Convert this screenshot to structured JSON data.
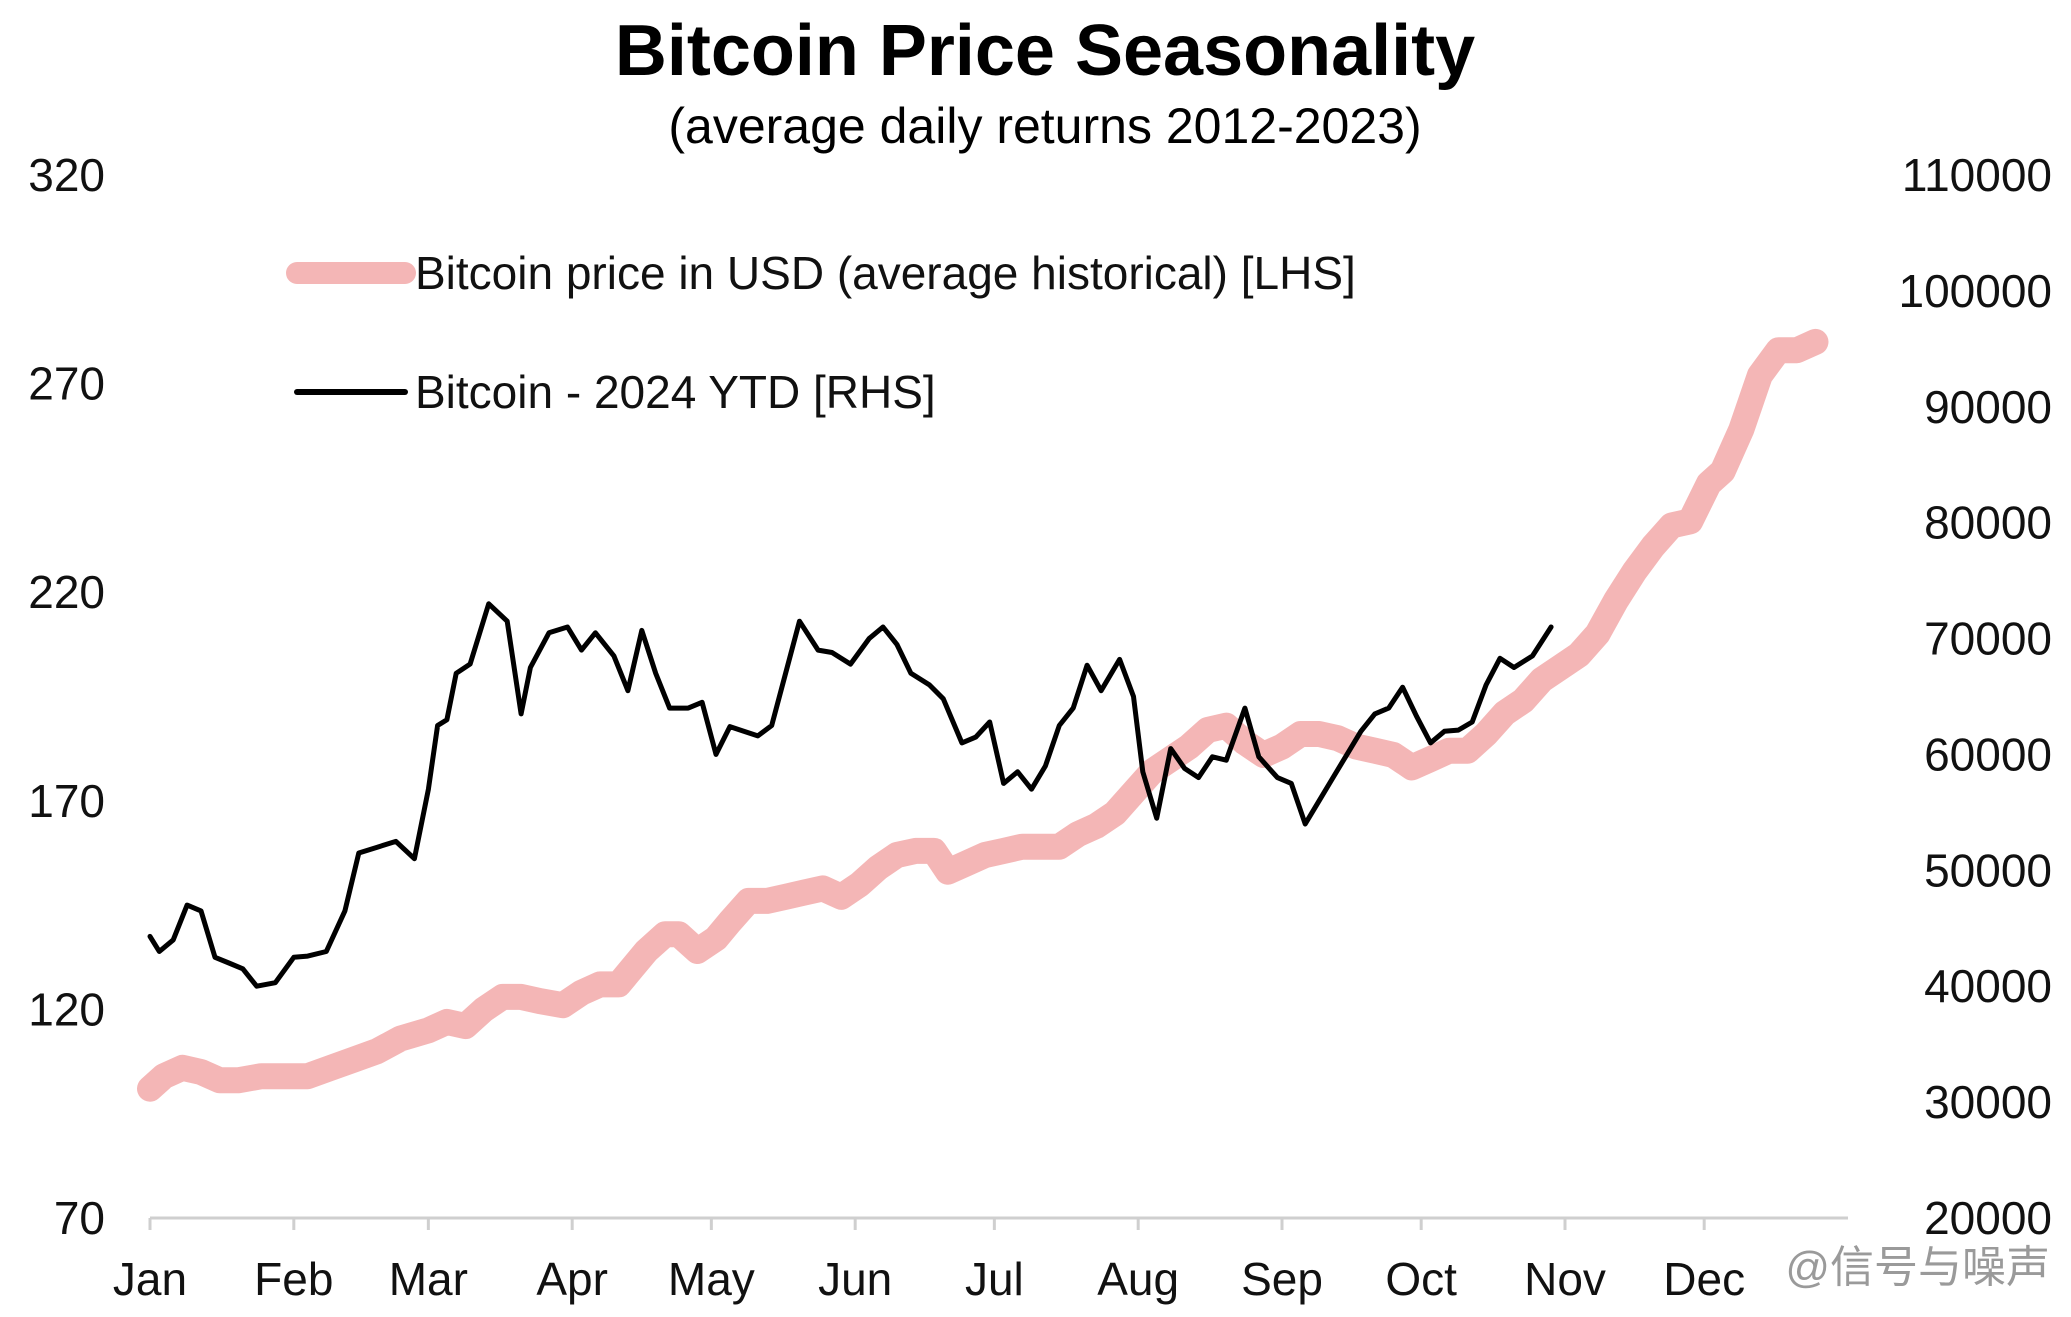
{
  "chart_data": {
    "type": "line",
    "title": "Bitcoin Price Seasonality",
    "subtitle": "(average daily returns 2012-2023)",
    "x_ticks": [
      "Jan",
      "Feb",
      "Mar",
      "Apr",
      "May",
      "Jun",
      "Jul",
      "Aug",
      "Sep",
      "Oct",
      "Nov",
      "Dec"
    ],
    "y_left": {
      "ticks": [
        70,
        120,
        170,
        220,
        270,
        320
      ],
      "range": [
        70,
        320
      ]
    },
    "y_right": {
      "ticks": [
        20000,
        30000,
        40000,
        50000,
        60000,
        70000,
        80000,
        90000,
        100000,
        110000
      ],
      "range": [
        20000,
        110000
      ]
    },
    "legend": {
      "placement": "top-left"
    },
    "series": [
      {
        "name": "Bitcoin price in USD (average historical) [LHS]",
        "axis": "left",
        "color": "#f4b6b6",
        "points": [
          [
            "Jan 1",
            101
          ],
          [
            "Jan 4",
            104
          ],
          [
            "Jan 8",
            106
          ],
          [
            "Jan 12",
            105
          ],
          [
            "Jan 16",
            103
          ],
          [
            "Jan 20",
            103
          ],
          [
            "Jan 25",
            104
          ],
          [
            "Jan 30",
            104
          ],
          [
            "Feb 4",
            104
          ],
          [
            "Feb 9",
            106
          ],
          [
            "Feb 14",
            108
          ],
          [
            "Feb 19",
            110
          ],
          [
            "Feb 24",
            113
          ],
          [
            "Mar 1",
            115
          ],
          [
            "Mar 5",
            117
          ],
          [
            "Mar 9",
            116
          ],
          [
            "Mar 13",
            120
          ],
          [
            "Mar 17",
            123
          ],
          [
            "Mar 21",
            123
          ],
          [
            "Mar 25",
            122
          ],
          [
            "Mar 30",
            121
          ],
          [
            "Apr 3",
            124
          ],
          [
            "Apr 7",
            126
          ],
          [
            "Apr 11",
            126
          ],
          [
            "Apr 14",
            130
          ],
          [
            "Apr 17",
            134
          ],
          [
            "Apr 21",
            138
          ],
          [
            "Apr 24",
            138
          ],
          [
            "Apr 28",
            134
          ],
          [
            "May 2",
            137
          ],
          [
            "May 5",
            141
          ],
          [
            "May 9",
            146
          ],
          [
            "May 13",
            146
          ],
          [
            "May 17",
            147
          ],
          [
            "May 21",
            148
          ],
          [
            "May 25",
            149
          ],
          [
            "May 29",
            147
          ],
          [
            "Jun 2",
            150
          ],
          [
            "Jun 6",
            154
          ],
          [
            "Jun 10",
            157
          ],
          [
            "Jun 14",
            158
          ],
          [
            "Jun 18",
            158
          ],
          [
            "Jun 21",
            153
          ],
          [
            "Jun 25",
            155
          ],
          [
            "Jun 29",
            157
          ],
          [
            "Jul 3",
            158
          ],
          [
            "Jul 7",
            159
          ],
          [
            "Jul 11",
            159
          ],
          [
            "Jul 15",
            159
          ],
          [
            "Jul 19",
            162
          ],
          [
            "Jul 23",
            164
          ],
          [
            "Jul 27",
            167
          ],
          [
            "Jul 31",
            172
          ],
          [
            "Aug 4",
            177
          ],
          [
            "Aug 8",
            180
          ],
          [
            "Aug 12",
            183
          ],
          [
            "Aug 16",
            187
          ],
          [
            "Aug 20",
            188
          ],
          [
            "Aug 24",
            184
          ],
          [
            "Aug 28",
            181
          ],
          [
            "Sep 1",
            183
          ],
          [
            "Sep 5",
            186
          ],
          [
            "Sep 9",
            186
          ],
          [
            "Sep 13",
            185
          ],
          [
            "Sep 17",
            183
          ],
          [
            "Sep 21",
            182
          ],
          [
            "Sep 25",
            181
          ],
          [
            "Sep 29",
            178
          ],
          [
            "Oct 3",
            180
          ],
          [
            "Oct 7",
            182
          ],
          [
            "Oct 11",
            182
          ],
          [
            "Oct 15",
            186
          ],
          [
            "Oct 19",
            191
          ],
          [
            "Oct 23",
            194
          ],
          [
            "Oct 27",
            199
          ],
          [
            "Oct 31",
            202
          ],
          [
            "Nov 4",
            205
          ],
          [
            "Nov 8",
            210
          ],
          [
            "Nov 12",
            218
          ],
          [
            "Nov 16",
            225
          ],
          [
            "Nov 20",
            231
          ],
          [
            "Nov 24",
            236
          ],
          [
            "Nov 28",
            237
          ],
          [
            "Dec 2",
            246
          ],
          [
            "Dec 5",
            249
          ],
          [
            "Dec 9",
            259
          ],
          [
            "Dec 13",
            272
          ],
          [
            "Dec 17",
            278
          ],
          [
            "Dec 21",
            278
          ],
          [
            "Dec 25",
            280
          ]
        ]
      },
      {
        "name": "Bitcoin - 2024 YTD [RHS]",
        "axis": "right",
        "color": "#000000",
        "points": [
          [
            "Jan 1",
            44300
          ],
          [
            "Jan 3",
            43000
          ],
          [
            "Jan 6",
            44000
          ],
          [
            "Jan 9",
            47000
          ],
          [
            "Jan 12",
            46500
          ],
          [
            "Jan 15",
            42500
          ],
          [
            "Jan 18",
            42000
          ],
          [
            "Jan 21",
            41500
          ],
          [
            "Jan 24",
            40000
          ],
          [
            "Jan 28",
            40300
          ],
          [
            "Feb 1",
            42500
          ],
          [
            "Feb 4",
            42600
          ],
          [
            "Feb 8",
            43000
          ],
          [
            "Feb 12",
            46500
          ],
          [
            "Feb 15",
            51500
          ],
          [
            "Feb 19",
            52000
          ],
          [
            "Feb 23",
            52500
          ],
          [
            "Feb 27",
            51000
          ],
          [
            "Mar 1",
            57000
          ],
          [
            "Mar 3",
            62500
          ],
          [
            "Mar 5",
            63000
          ],
          [
            "Mar 7",
            67000
          ],
          [
            "Mar 10",
            67800
          ],
          [
            "Mar 14",
            73000
          ],
          [
            "Mar 18",
            71500
          ],
          [
            "Mar 21",
            63500
          ],
          [
            "Mar 23",
            67500
          ],
          [
            "Mar 27",
            70500
          ],
          [
            "Mar 31",
            71000
          ],
          [
            "Apr 3",
            69000
          ],
          [
            "Apr 6",
            70500
          ],
          [
            "Apr 10",
            68500
          ],
          [
            "Apr 13",
            65500
          ],
          [
            "Apr 16",
            70700
          ],
          [
            "Apr 19",
            67000
          ],
          [
            "Apr 22",
            64000
          ],
          [
            "Apr 26",
            64000
          ],
          [
            "Apr 29",
            64500
          ],
          [
            "May 2",
            60000
          ],
          [
            "May 5",
            62400
          ],
          [
            "May 8",
            62000
          ],
          [
            "May 11",
            61600
          ],
          [
            "May 14",
            62500
          ],
          [
            "May 17",
            67000
          ],
          [
            "May 20",
            71500
          ],
          [
            "May 24",
            69000
          ],
          [
            "May 27",
            68800
          ],
          [
            "May 31",
            67800
          ],
          [
            "Jun 4",
            70000
          ],
          [
            "Jun 7",
            71000
          ],
          [
            "Jun 10",
            69500
          ],
          [
            "Jun 13",
            67000
          ],
          [
            "Jun 17",
            66000
          ],
          [
            "Jun 20",
            64800
          ],
          [
            "Jun 24",
            61000
          ],
          [
            "Jun 27",
            61500
          ],
          [
            "Jun 30",
            62800
          ],
          [
            "Jul 3",
            57500
          ],
          [
            "Jul 6",
            58500
          ],
          [
            "Jul 9",
            57000
          ],
          [
            "Jul 12",
            59000
          ],
          [
            "Jul 15",
            62500
          ],
          [
            "Jul 18",
            64000
          ],
          [
            "Jul 21",
            67700
          ],
          [
            "Jul 24",
            65500
          ],
          [
            "Jul 28",
            68200
          ],
          [
            "Jul 31",
            65000
          ],
          [
            "Aug 2",
            58500
          ],
          [
            "Aug 5",
            54500
          ],
          [
            "Aug 8",
            60500
          ],
          [
            "Aug 11",
            58800
          ],
          [
            "Aug 14",
            58000
          ],
          [
            "Aug 17",
            59800
          ],
          [
            "Aug 20",
            59500
          ],
          [
            "Aug 24",
            64000
          ],
          [
            "Aug 27",
            59800
          ],
          [
            "Aug 31",
            58000
          ],
          [
            "Sep 3",
            57500
          ],
          [
            "Sep 6",
            54000
          ],
          [
            "Sep 9",
            56000
          ],
          [
            "Sep 12",
            58000
          ],
          [
            "Sep 15",
            60000
          ],
          [
            "Sep 18",
            62000
          ],
          [
            "Sep 21",
            63500
          ],
          [
            "Sep 24",
            64000
          ],
          [
            "Sep 27",
            65800
          ],
          [
            "Sep 30",
            63300
          ],
          [
            "Oct 3",
            61000
          ],
          [
            "Oct 6",
            62000
          ],
          [
            "Oct 9",
            62100
          ],
          [
            "Oct 12",
            62800
          ],
          [
            "Oct 15",
            66000
          ],
          [
            "Oct 18",
            68300
          ],
          [
            "Oct 21",
            67500
          ],
          [
            "Oct 25",
            68500
          ],
          [
            "Oct 29",
            71000
          ]
        ]
      }
    ]
  },
  "watermark": "@信号与噪声"
}
